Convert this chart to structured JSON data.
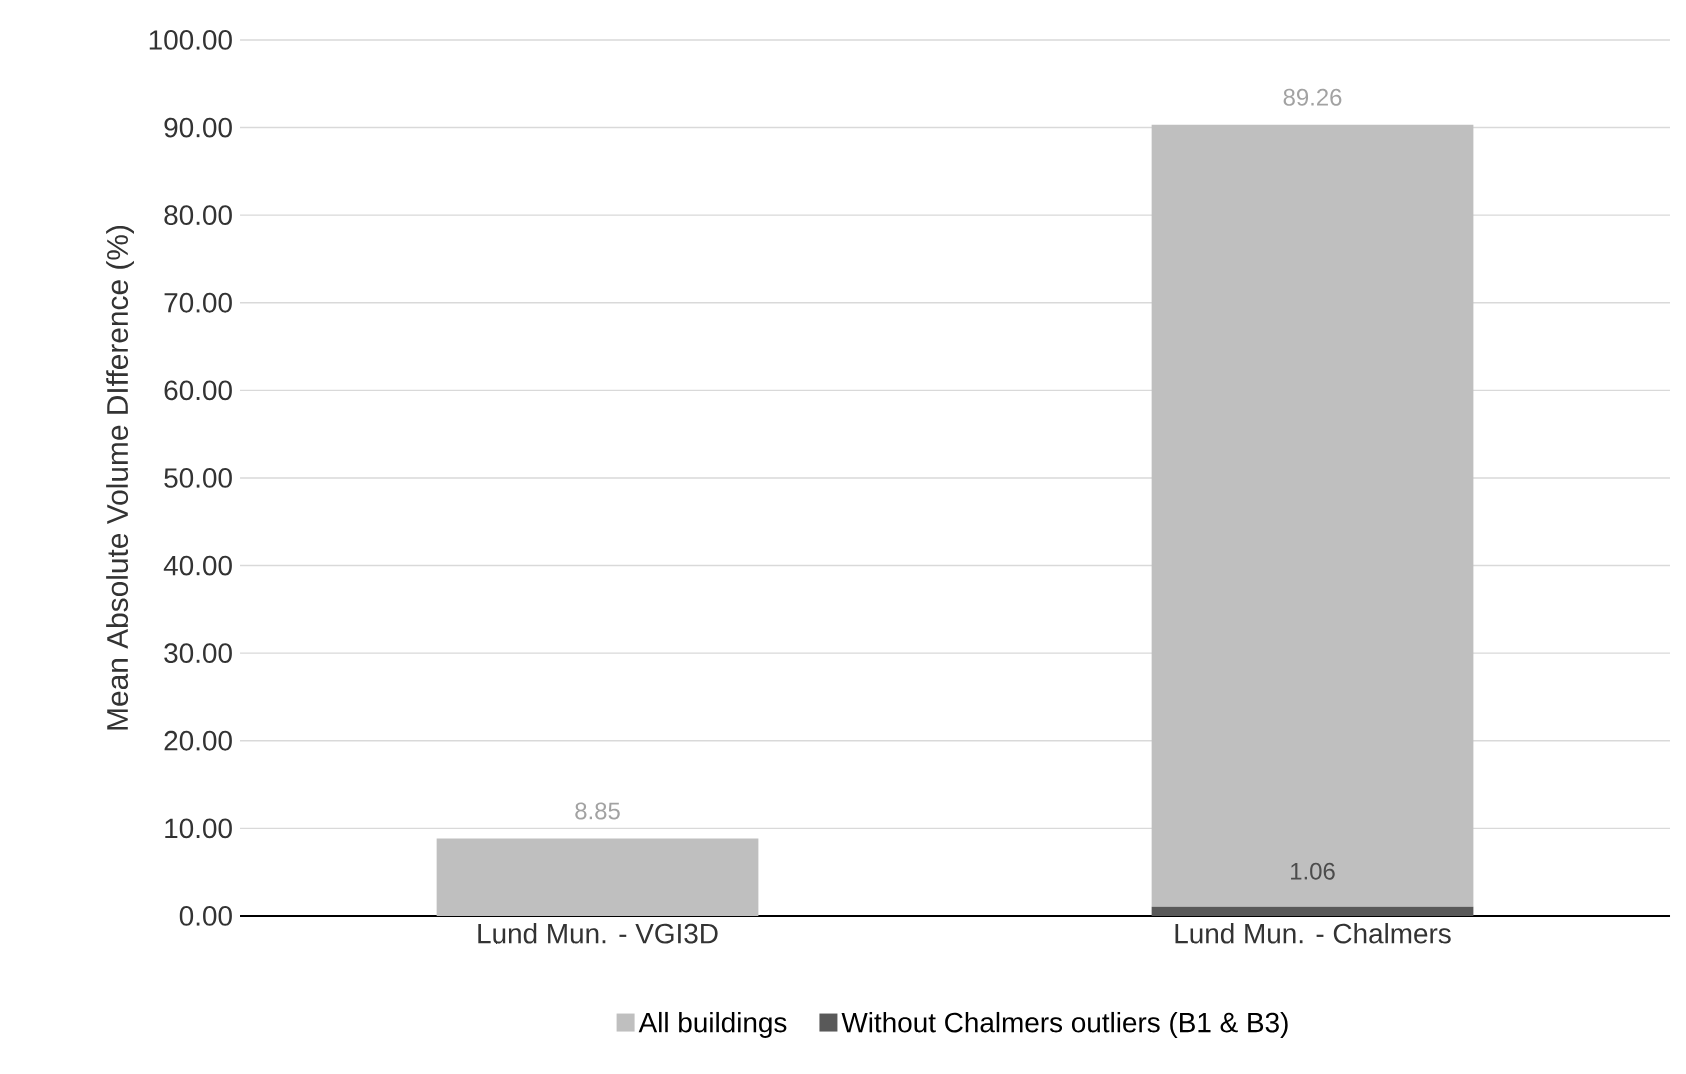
{
  "chart_data": {
    "type": "bar",
    "ylabel": "Mean Absolute Volume DIfference (%)",
    "categories": [
      "Lund Mun. - VGI3D",
      "Lund Mun. - Chalmers"
    ],
    "stacked": true,
    "series": [
      {
        "name": "Without Chalmers outliers (B1 & B3)",
        "color": "#595959",
        "values": [
          null,
          1.06
        ]
      },
      {
        "name": "All buildings",
        "color": "#bfbfbf",
        "values": [
          8.85,
          89.26
        ]
      }
    ],
    "ylim": [
      0,
      100
    ],
    "yticks": [
      {
        "value": 0,
        "label": "0.00"
      },
      {
        "value": 10,
        "label": "10.00"
      },
      {
        "value": 20,
        "label": "20.00"
      },
      {
        "value": 30,
        "label": "30.00"
      },
      {
        "value": 40,
        "label": "40.00"
      },
      {
        "value": 50,
        "label": "50.00"
      },
      {
        "value": 60,
        "label": "60.00"
      },
      {
        "value": 70,
        "label": "70.00"
      },
      {
        "value": 80,
        "label": "80.00"
      },
      {
        "value": 90,
        "label": "90.00"
      },
      {
        "value": 100,
        "label": "100.00"
      }
    ],
    "grid": "y",
    "legend": "bottom",
    "data_labels": true
  }
}
